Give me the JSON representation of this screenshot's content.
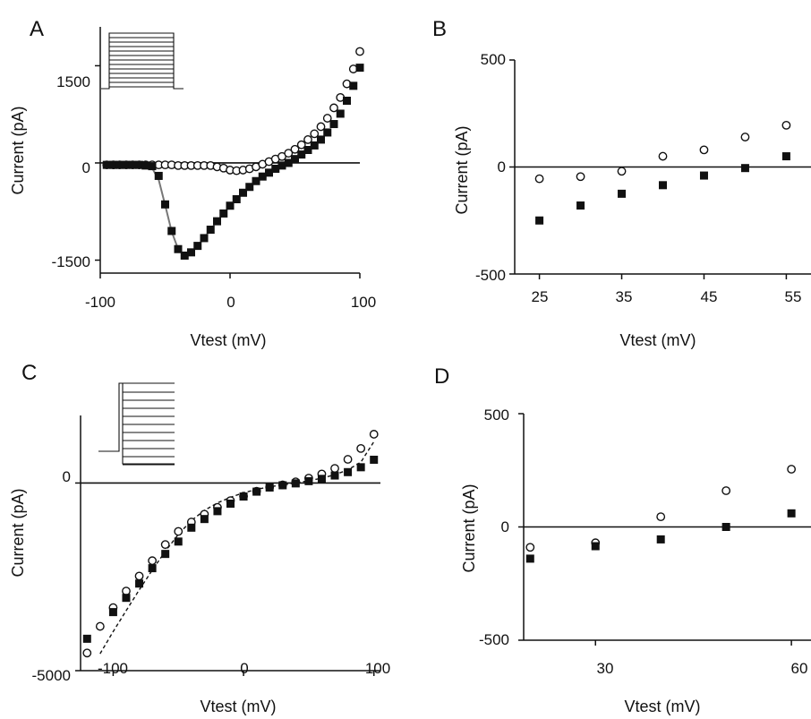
{
  "chart_data": [
    {
      "panel": "A",
      "type": "scatter",
      "xlabel": "Vtest (mV)",
      "ylabel": "Current (pA)",
      "xlim": [
        -100,
        100
      ],
      "ylim": [
        -1700,
        2100
      ],
      "xticks": [
        -100,
        0,
        100
      ],
      "yticks": [
        -1500,
        0,
        1500
      ],
      "grid": false,
      "legend": "none",
      "inset": "voltage step protocol",
      "series": [
        {
          "marker": "open-circle",
          "x": [
            -95,
            -90,
            -85,
            -80,
            -75,
            -70,
            -65,
            -60,
            -55,
            -50,
            -45,
            -40,
            -35,
            -30,
            -25,
            -20,
            -15,
            -10,
            -5,
            0,
            5,
            10,
            15,
            20,
            25,
            30,
            35,
            40,
            45,
            50,
            55,
            60,
            65,
            70,
            75,
            80,
            85,
            90,
            95,
            100
          ],
          "y": [
            -30,
            -30,
            -30,
            -30,
            -30,
            -30,
            -30,
            -30,
            -30,
            -30,
            -30,
            -40,
            -40,
            -40,
            -40,
            -40,
            -40,
            -60,
            -80,
            -110,
            -120,
            -110,
            -90,
            -60,
            -20,
            20,
            60,
            100,
            150,
            210,
            280,
            360,
            450,
            560,
            690,
            850,
            1010,
            1220,
            1450,
            1720
          ]
        },
        {
          "marker": "filled-square",
          "x": [
            -95,
            -90,
            -85,
            -80,
            -75,
            -70,
            -65,
            -60,
            -55,
            -50,
            -45,
            -40,
            -35,
            -30,
            -25,
            -20,
            -15,
            -10,
            -5,
            0,
            5,
            10,
            15,
            20,
            25,
            30,
            35,
            40,
            45,
            50,
            55,
            60,
            65,
            70,
            75,
            80,
            85,
            90,
            95,
            100
          ],
          "y": [
            -30,
            -30,
            -30,
            -30,
            -30,
            -30,
            -40,
            -50,
            -200,
            -640,
            -1050,
            -1330,
            -1430,
            -1380,
            -1280,
            -1160,
            -1030,
            -900,
            -780,
            -660,
            -560,
            -460,
            -370,
            -280,
            -210,
            -150,
            -90,
            -40,
            0,
            60,
            130,
            200,
            270,
            360,
            470,
            600,
            760,
            960,
            1190,
            1470
          ]
        }
      ],
      "fit_curve": {
        "style": "solid gray",
        "x": [
          -70,
          -65,
          -60,
          -55,
          -50,
          -45,
          -40,
          -35,
          -30,
          -25,
          -20,
          -15,
          -10,
          -5,
          0,
          5,
          10,
          15,
          20,
          25,
          30,
          35,
          40
        ],
        "y": [
          -20,
          -40,
          -80,
          -260,
          -650,
          -1060,
          -1330,
          -1420,
          -1380,
          -1280,
          -1160,
          -1030,
          -900,
          -780,
          -660,
          -560,
          -460,
          -370,
          -280,
          -210,
          -150,
          -90,
          -40
        ]
      }
    },
    {
      "panel": "B",
      "type": "scatter",
      "xlabel": "Vtest (mV)",
      "ylabel": "Current (pA)",
      "xlim": [
        22,
        58
      ],
      "ylim": [
        -500,
        500
      ],
      "xticks": [
        25,
        35,
        45,
        55
      ],
      "yticks": [
        -500,
        0,
        500
      ],
      "grid": false,
      "legend": "none",
      "series": [
        {
          "marker": "open-circle",
          "x": [
            25,
            30,
            35,
            40,
            45,
            50,
            55
          ],
          "y": [
            -55,
            -45,
            -20,
            50,
            80,
            140,
            195
          ]
        },
        {
          "marker": "filled-square",
          "x": [
            25,
            30,
            35,
            40,
            45,
            50,
            55
          ],
          "y": [
            -250,
            -180,
            -125,
            -85,
            -40,
            -5,
            50
          ]
        }
      ]
    },
    {
      "panel": "C",
      "type": "scatter",
      "xlabel": "Vtest (mV)",
      "ylabel": "Current (pA)",
      "xlim": [
        -125,
        105
      ],
      "ylim": [
        -5000,
        1800
      ],
      "xticks": [
        -100,
        0,
        100
      ],
      "yticks": [
        -5000,
        0
      ],
      "grid": false,
      "legend": "none",
      "inset": "tail current step protocol",
      "series": [
        {
          "marker": "open-circle",
          "x": [
            -120,
            -110,
            -100,
            -90,
            -80,
            -70,
            -60,
            -50,
            -40,
            -30,
            -20,
            -10,
            0,
            10,
            20,
            30,
            40,
            50,
            60,
            70,
            80,
            90,
            100
          ],
          "y": [
            -4530,
            -3820,
            -3320,
            -2880,
            -2480,
            -2070,
            -1640,
            -1290,
            -1040,
            -830,
            -650,
            -470,
            -350,
            -220,
            -110,
            -50,
            30,
            130,
            240,
            390,
            630,
            920,
            1300
          ]
        },
        {
          "marker": "filled-square",
          "x": [
            -120,
            -100,
            -90,
            -80,
            -70,
            -60,
            -50,
            -40,
            -30,
            -20,
            -10,
            0,
            10,
            20,
            30,
            40,
            50,
            60,
            70,
            80,
            90,
            100
          ],
          "y": [
            -4150,
            -3440,
            -3060,
            -2680,
            -2270,
            -1890,
            -1560,
            -1190,
            -960,
            -750,
            -550,
            -360,
            -230,
            -120,
            -60,
            -10,
            50,
            110,
            200,
            290,
            420,
            620
          ]
        }
      ],
      "fit_curve": {
        "style": "dashed",
        "x": [
          -110,
          -100,
          -90,
          -80,
          -70,
          -60,
          -50,
          -40,
          -30,
          -20,
          -10,
          0,
          10,
          20,
          30,
          40,
          50,
          60,
          70,
          80,
          90,
          100
        ],
        "y": [
          -4550,
          -3960,
          -3400,
          -2850,
          -2320,
          -1820,
          -1370,
          -1000,
          -730,
          -530,
          -380,
          -260,
          -170,
          -100,
          -50,
          0,
          60,
          130,
          220,
          350,
          560,
          1100
        ]
      }
    },
    {
      "panel": "D",
      "type": "scatter",
      "xlabel": "Vtest (mV)",
      "ylabel": "Current (pA)",
      "xlim": [
        19,
        63
      ],
      "ylim": [
        -500,
        500
      ],
      "xticks": [
        30,
        60
      ],
      "yticks": [
        -500,
        0,
        500
      ],
      "grid": false,
      "legend": "none",
      "series": [
        {
          "marker": "open-circle",
          "x": [
            20,
            30,
            40,
            50,
            60
          ],
          "y": [
            -90,
            -70,
            45,
            160,
            255
          ]
        },
        {
          "marker": "filled-square",
          "x": [
            20,
            30,
            40,
            50,
            60
          ],
          "y": [
            -140,
            -85,
            -55,
            0,
            60
          ]
        }
      ]
    }
  ],
  "panels": {
    "A": {
      "letter": "A",
      "xlabel": "Vtest (mV)",
      "ylabel": "Current (pA)",
      "xticks": [
        "-100",
        "0",
        "100"
      ],
      "yticks": [
        "1500",
        "0",
        "-1500"
      ]
    },
    "B": {
      "letter": "B",
      "xlabel": "Vtest (mV)",
      "ylabel": "Current (pA)",
      "xticks": [
        "25",
        "35",
        "45",
        "55"
      ],
      "yticks": [
        "500",
        "0",
        "-500"
      ]
    },
    "C": {
      "letter": "C",
      "xlabel": "Vtest (mV)",
      "ylabel": "Current (pA)",
      "xticks": [
        "-100",
        "0",
        "100"
      ],
      "yticks": [
        "0",
        "-5000"
      ]
    },
    "D": {
      "letter": "D",
      "xlabel": "Vtest (mV)",
      "ylabel": "Current (pA)",
      "xticks": [
        "30",
        "60"
      ],
      "yticks": [
        "500",
        "0",
        "-500"
      ]
    }
  }
}
